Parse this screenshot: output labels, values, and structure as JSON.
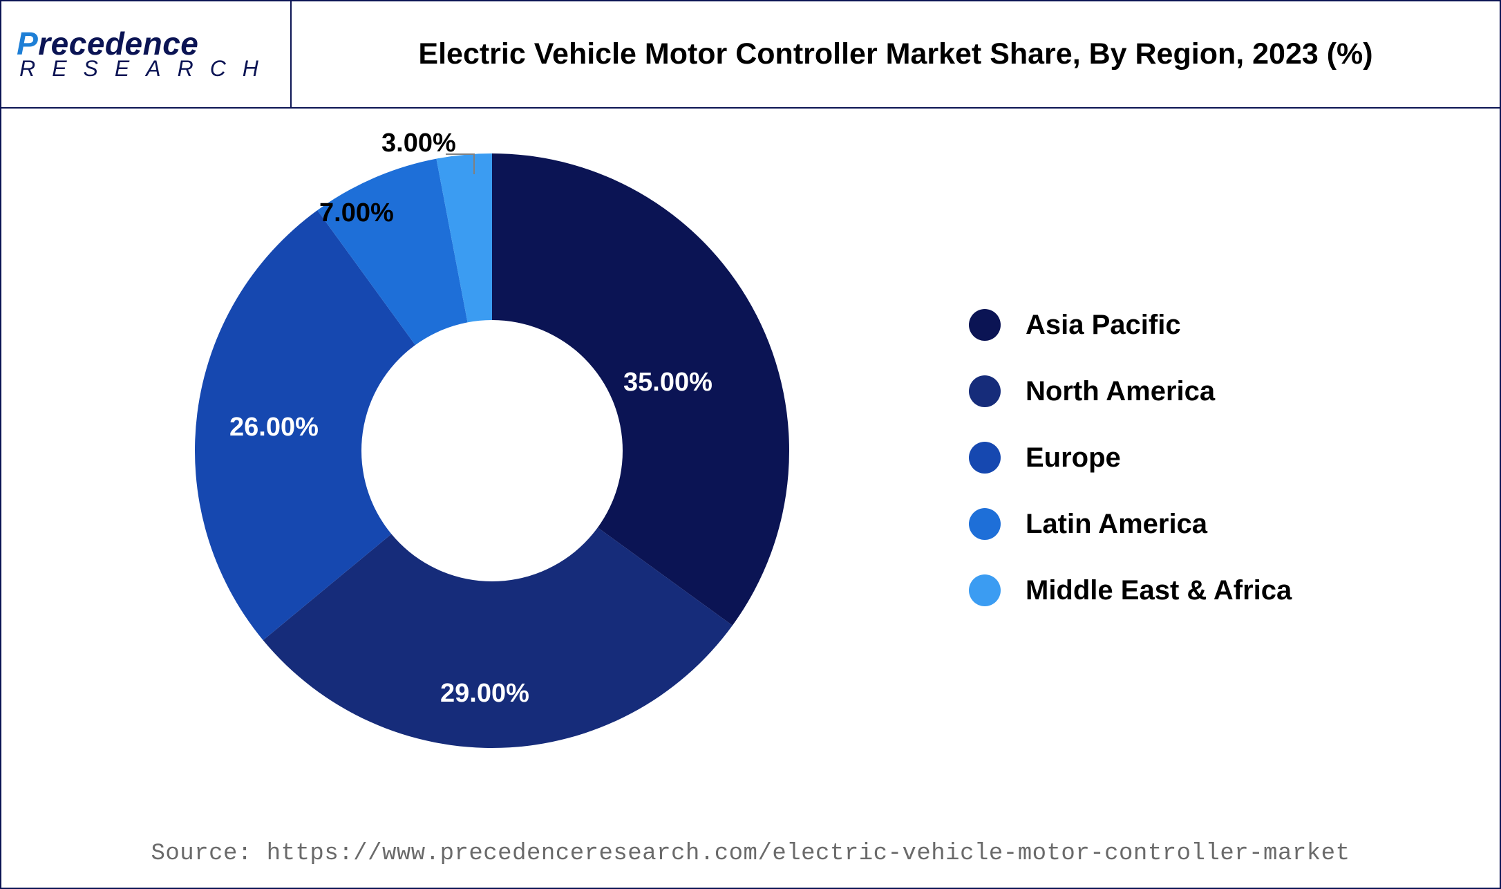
{
  "logo": {
    "line1_prefix": "P",
    "line1_rest": "recedence",
    "line2": "RESEARCH"
  },
  "title": "Electric Vehicle Motor Controller Market Share, By Region, 2023 (%)",
  "chart": {
    "type": "donut",
    "inner_radius_ratio": 0.42,
    "background_color": "#ffffff",
    "slices": [
      {
        "label": "Asia Pacific",
        "value": 35,
        "display": "35.00%",
        "color": "#0b1454"
      },
      {
        "label": "North America",
        "value": 29,
        "display": "29.00%",
        "color": "#162c7a"
      },
      {
        "label": "Europe",
        "value": 26,
        "display": "26.00%",
        "color": "#1648b0"
      },
      {
        "label": "Latin America",
        "value": 7,
        "display": "7.00%",
        "color": "#1e6fd8"
      },
      {
        "label": "Middle East & Africa",
        "value": 3,
        "display": "3.00%",
        "color": "#3b9cf2"
      }
    ],
    "label_fontsize": 38,
    "legend_fontsize": 40,
    "legend_dot_size": 46
  },
  "source": "Source: https://www.precedenceresearch.com/electric-vehicle-motor-controller-market"
}
